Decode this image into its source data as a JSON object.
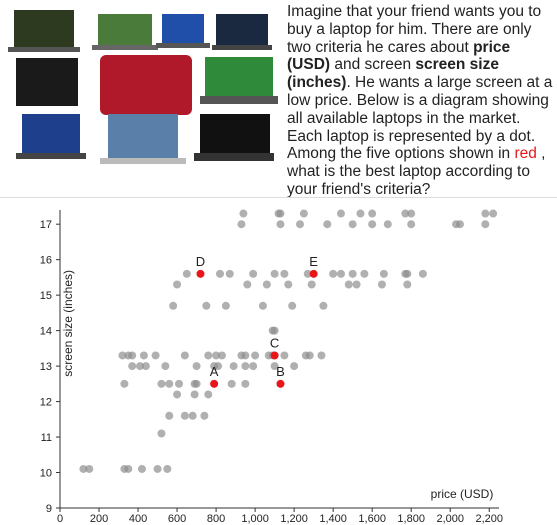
{
  "question": {
    "parts": [
      {
        "text": "Imagine that your friend wants you to buy a laptop for him. There are only two criteria he cares about ",
        "style": "plain"
      },
      {
        "text": "price (USD)",
        "style": "bold"
      },
      {
        "text": " and screen ",
        "style": "plain"
      },
      {
        "text": "screen size (inches)",
        "style": "bold"
      },
      {
        "text": ". He wants a large screen at a low price. Below is a diagram showing all available laptops in the market. Each laptop is represented by a dot. Among the five options shown in ",
        "style": "plain"
      },
      {
        "text": "red",
        "style": "red"
      },
      {
        "text": " , what is the best laptop according to your friend's criteria?",
        "style": "plain"
      }
    ]
  },
  "chart_data": {
    "type": "scatter",
    "x_label": "price (USD)",
    "y_label": "screen size (inches)",
    "xlim": [
      0,
      2250
    ],
    "ylim": [
      9,
      17.4
    ],
    "xticks": [
      0,
      200,
      400,
      600,
      800,
      {
        "value": 1000,
        "label": "1,000"
      },
      {
        "value": 1200,
        "label": "1,200"
      },
      {
        "value": 1400,
        "label": "1,400"
      },
      {
        "value": 1600,
        "label": "1,600"
      },
      {
        "value": 1800,
        "label": "1,800"
      },
      {
        "value": 2000,
        "label": "2,000"
      },
      {
        "value": 2200,
        "label": "2,200"
      }
    ],
    "yticks": [
      9,
      10,
      11,
      12,
      13,
      14,
      15,
      16,
      17
    ],
    "series": [
      {
        "color": "#8f8f8f",
        "x": [
          940,
          1120,
          1130,
          1250,
          1440,
          1540,
          1600,
          1770,
          1800,
          2180,
          2220,
          930,
          1130,
          1230,
          1370,
          1500,
          1600,
          1680,
          1800,
          2030,
          2050,
          2180,
          650,
          820,
          870,
          990,
          1100,
          1150,
          1270,
          1400,
          1440,
          1500,
          1560,
          1660,
          1770,
          1780,
          1860,
          600,
          960,
          1060,
          1170,
          1290,
          1480,
          1520,
          1650,
          1780,
          580,
          750,
          850,
          1040,
          1190,
          1350,
          1090,
          1100,
          320,
          350,
          370,
          430,
          490,
          640,
          760,
          800,
          830,
          930,
          950,
          1000,
          1070,
          1090,
          1150,
          1260,
          1280,
          1340,
          370,
          410,
          440,
          540,
          700,
          790,
          810,
          890,
          950,
          990,
          1100,
          1200,
          330,
          520,
          560,
          610,
          690,
          700,
          880,
          950,
          600,
          690,
          760,
          560,
          640,
          680,
          740,
          520,
          120,
          150,
          330,
          350,
          420,
          500,
          550
        ],
        "values": [
          17.3,
          17.3,
          17.3,
          17.3,
          17.3,
          17.3,
          17.3,
          17.3,
          17.3,
          17.3,
          17.3,
          17,
          17,
          17,
          17,
          17,
          17,
          17,
          17,
          17,
          17,
          17,
          15.6,
          15.6,
          15.6,
          15.6,
          15.6,
          15.6,
          15.6,
          15.6,
          15.6,
          15.6,
          15.6,
          15.6,
          15.6,
          15.6,
          15.6,
          15.3,
          15.3,
          15.3,
          15.3,
          15.3,
          15.3,
          15.3,
          15.3,
          15.3,
          14.7,
          14.7,
          14.7,
          14.7,
          14.7,
          14.7,
          14,
          14,
          13.3,
          13.3,
          13.3,
          13.3,
          13.3,
          13.3,
          13.3,
          13.3,
          13.3,
          13.3,
          13.3,
          13.3,
          13.3,
          13.3,
          13.3,
          13.3,
          13.3,
          13.3,
          13,
          13,
          13,
          13,
          13,
          13,
          13,
          13,
          13,
          13,
          13,
          13,
          12.5,
          12.5,
          12.5,
          12.5,
          12.5,
          12.5,
          12.5,
          12.5,
          12.2,
          12.2,
          12.2,
          11.6,
          11.6,
          11.6,
          11.6,
          11.1,
          10.1,
          10.1,
          10.1,
          10.1,
          10.1,
          10.1,
          10.1
        ]
      },
      {
        "color": "#e8161b",
        "x": [
          790,
          1130,
          1100,
          720,
          1300
        ],
        "values": [
          12.5,
          12.5,
          13.3,
          15.6,
          15.6
        ],
        "labels": [
          "A",
          "B",
          "C",
          "D",
          "E"
        ]
      }
    ]
  }
}
